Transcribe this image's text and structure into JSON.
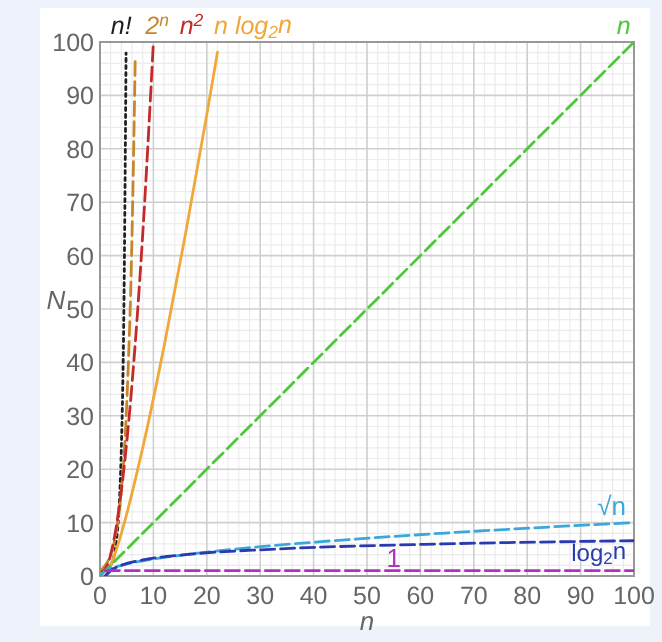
{
  "chart_data": {
    "type": "line",
    "xlabel": "n",
    "ylabel": "N",
    "xlim": [
      0,
      100
    ],
    "ylim": [
      0,
      100
    ],
    "xticks": [
      0,
      10,
      20,
      30,
      40,
      50,
      60,
      70,
      80,
      90,
      100
    ],
    "yticks": [
      0,
      10,
      20,
      30,
      40,
      50,
      60,
      70,
      80,
      90,
      100
    ],
    "grid": true,
    "marker": "none",
    "series": [
      {
        "name": "n!",
        "color": "#202020",
        "line_style": "dotted",
        "x": [
          0,
          1,
          2,
          3,
          4,
          4.5,
          4.88
        ],
        "values": [
          1,
          1,
          2,
          6,
          24,
          52.3,
          97.9
        ]
      },
      {
        "name": "2$^{n}$",
        "color": "#c8862c",
        "line_style": "dashed",
        "x": [
          0,
          1,
          2,
          3,
          4,
          5,
          6,
          6.6
        ],
        "values": [
          1,
          2,
          4,
          8,
          16,
          32,
          64,
          97
        ]
      },
      {
        "name": "n$^{2}$",
        "color": "#c42a2a",
        "line_style": "dashed",
        "x": [
          0,
          2,
          4,
          6,
          8,
          10
        ],
        "values": [
          0,
          4,
          16,
          36,
          64,
          100
        ]
      },
      {
        "name": "n log$_{2}$n",
        "color": "#f0a83a",
        "line_style": "solid",
        "x": [
          1,
          2,
          4,
          8,
          12,
          16,
          20,
          22
        ],
        "values": [
          0,
          2,
          8,
          24,
          43,
          64,
          86.4,
          98.1
        ]
      },
      {
        "name": "n",
        "color": "#4cc83a",
        "line_style": "dashed",
        "x": [
          0,
          100
        ],
        "values": [
          0,
          100
        ]
      },
      {
        "name": "√n",
        "color": "#3aa8d8",
        "line_style": "dashed",
        "x": [
          0,
          1,
          4,
          9,
          16,
          25,
          36,
          49,
          64,
          81,
          100
        ],
        "values": [
          0,
          1,
          2,
          3,
          4,
          5,
          6,
          7,
          8,
          9,
          10
        ]
      },
      {
        "name": "log$_{2}$n",
        "color": "#2a3ab0",
        "line_style": "dashed",
        "x": [
          1,
          2,
          4,
          8,
          16,
          32,
          64,
          100
        ],
        "values": [
          0,
          1,
          2,
          3,
          4,
          5,
          6,
          6.6
        ]
      },
      {
        "name": "1",
        "color": "#b030c0",
        "line_style": "dashed",
        "x": [
          1,
          100
        ],
        "values": [
          1,
          1
        ]
      }
    ]
  }
}
